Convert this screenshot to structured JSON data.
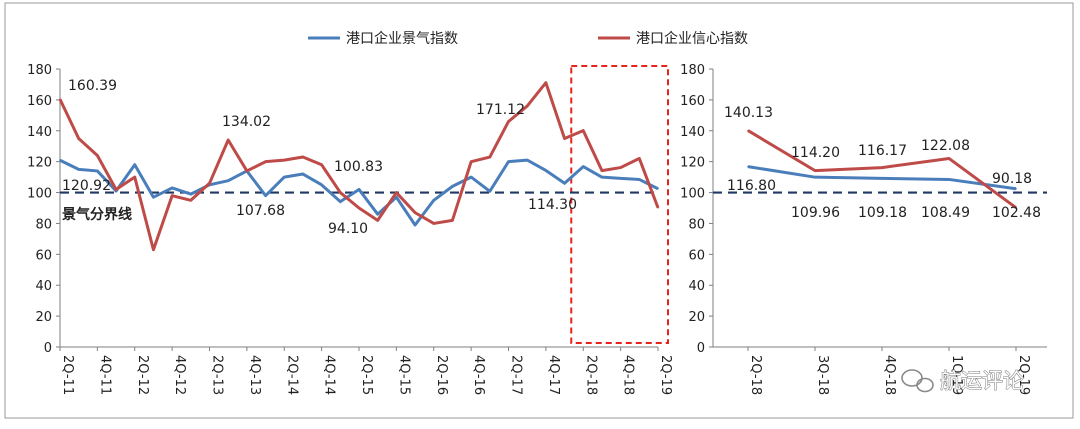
{
  "legend": {
    "series1": "港口企业景气指数",
    "series2": "港口企业信心指数"
  },
  "colors": {
    "series1": "#4a7ebb",
    "series2": "#be4b48",
    "threshold": "#1f3864",
    "highlight": "#e8231b",
    "axis": "#7f7f7f"
  },
  "watermark": "航运评论",
  "chart_data": [
    {
      "type": "line",
      "ylim": [
        0,
        180
      ],
      "yticks": [
        0,
        20,
        40,
        60,
        80,
        100,
        120,
        140,
        160,
        180
      ],
      "x_tick_labels": [
        "2Q-11",
        "4Q-11",
        "2Q-12",
        "4Q-12",
        "2Q-13",
        "4Q-13",
        "2Q-14",
        "4Q-14",
        "2Q-15",
        "4Q-15",
        "2Q-16",
        "4Q-16",
        "2Q-17",
        "4Q-17",
        "2Q-18",
        "4Q-18",
        "2Q-19"
      ],
      "threshold": {
        "value": 100,
        "label": "景气分界线"
      },
      "highlight_range": [
        "2Q-18",
        "2Q-19"
      ],
      "series": [
        {
          "name": "港口企业景气指数",
          "values": [
            120.92,
            115,
            114,
            101,
            118,
            97,
            103,
            99,
            105,
            107.68,
            114,
            98,
            110,
            112,
            105,
            94.1,
            102,
            86,
            97,
            79,
            95,
            104,
            110,
            100.83,
            120,
            121,
            114.3,
            106,
            116.8,
            109.96,
            109.18,
            108.49,
            102.48
          ]
        },
        {
          "name": "港口企业信心指数",
          "values": [
            160.39,
            135,
            124,
            102,
            110,
            63,
            98,
            95,
            106,
            134.02,
            114,
            120,
            121,
            123,
            118,
            100,
            90,
            82,
            100,
            87,
            80,
            82,
            120,
            123,
            146,
            156,
            171.12,
            135,
            140.13,
            114.2,
            116.17,
            122.08,
            90.18
          ]
        }
      ],
      "annotations": [
        "160.39",
        "120.92",
        "134.02",
        "107.68",
        "100.83",
        "94.10",
        "171.12",
        "114.30"
      ]
    },
    {
      "type": "line",
      "ylim": [
        0,
        180
      ],
      "yticks": [
        0,
        20,
        40,
        60,
        80,
        100,
        120,
        140,
        160,
        180
      ],
      "categories": [
        "2Q-18",
        "3Q-18",
        "4Q-18",
        "1Q-19",
        "2Q-19"
      ],
      "x_tick_labels": [
        "2Q-18",
        "3Q-18",
        "4Q-18",
        "1Q-19",
        "2Q-19"
      ],
      "threshold": {
        "value": 100
      },
      "series": [
        {
          "name": "港口企业景气指数",
          "values": [
            116.8,
            109.96,
            109.18,
            108.49,
            102.48
          ]
        },
        {
          "name": "港口企业信心指数",
          "values": [
            140.13,
            114.2,
            116.17,
            122.08,
            90.18
          ]
        }
      ],
      "blue_labels": [
        "116.80",
        "109.96",
        "109.18",
        "108.49",
        "102.48"
      ],
      "red_labels": [
        "140.13",
        "114.20",
        "116.17",
        "122.08",
        "90.18"
      ]
    }
  ]
}
